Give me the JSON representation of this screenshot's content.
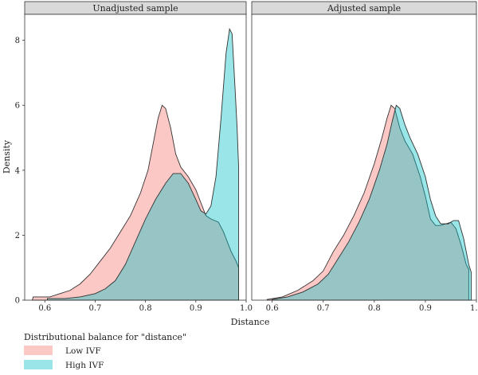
{
  "chart_data": {
    "type": "area",
    "subtype": "density",
    "xlabel": "Distance",
    "ylabel": "Density",
    "xlim": [
      0.56,
      1.0
    ],
    "ylim": [
      0,
      8.8
    ],
    "x_ticks": [
      0.6,
      0.7,
      0.8,
      0.9,
      1.0
    ],
    "x_tick_labels": [
      "0.6",
      "0.7",
      "0.8",
      "0.9",
      "1.0"
    ],
    "y_ticks": [
      0,
      2,
      4,
      6,
      8
    ],
    "y_tick_labels": [
      "0",
      "2",
      "4",
      "6",
      "8"
    ],
    "grid": false,
    "legend": {
      "title": "Distributional balance for \"distance\"",
      "position": "bottom-left",
      "entries": [
        {
          "label": "Low IVF",
          "color": "#f8c4bf"
        },
        {
          "label": "High IVF",
          "color": "#9fdde0"
        }
      ]
    },
    "colors": {
      "low_fill": "#f8766d",
      "high_fill": "#00bfc4",
      "outline": "#333333",
      "strip_bg": "#d9d9d9"
    },
    "panels": [
      {
        "title": "Unadjusted sample",
        "series": [
          {
            "name": "Low IVF",
            "points": [
              [
                0.575,
                0.0
              ],
              [
                0.577,
                0.1
              ],
              [
                0.59,
                0.1
              ],
              [
                0.61,
                0.1
              ],
              [
                0.63,
                0.2
              ],
              [
                0.65,
                0.3
              ],
              [
                0.67,
                0.5
              ],
              [
                0.69,
                0.8
              ],
              [
                0.71,
                1.2
              ],
              [
                0.73,
                1.6
              ],
              [
                0.75,
                2.1
              ],
              [
                0.77,
                2.6
              ],
              [
                0.79,
                3.3
              ],
              [
                0.805,
                4.0
              ],
              [
                0.815,
                4.8
              ],
              [
                0.825,
                5.6
              ],
              [
                0.833,
                6.0
              ],
              [
                0.84,
                5.9
              ],
              [
                0.85,
                5.3
              ],
              [
                0.86,
                4.5
              ],
              [
                0.87,
                4.1
              ],
              [
                0.885,
                3.8
              ],
              [
                0.9,
                3.4
              ],
              [
                0.91,
                3.0
              ],
              [
                0.92,
                2.6
              ],
              [
                0.93,
                2.5
              ],
              [
                0.945,
                2.4
              ],
              [
                0.955,
                2.1
              ],
              [
                0.97,
                1.5
              ],
              [
                0.98,
                1.2
              ],
              [
                0.985,
                1.0
              ],
              [
                0.985,
                0.0
              ]
            ]
          },
          {
            "name": "High IVF",
            "points": [
              [
                0.605,
                0.0
              ],
              [
                0.605,
                0.05
              ],
              [
                0.64,
                0.05
              ],
              [
                0.67,
                0.1
              ],
              [
                0.7,
                0.2
              ],
              [
                0.72,
                0.35
              ],
              [
                0.74,
                0.6
              ],
              [
                0.76,
                1.1
              ],
              [
                0.78,
                1.8
              ],
              [
                0.8,
                2.5
              ],
              [
                0.82,
                3.1
              ],
              [
                0.84,
                3.6
              ],
              [
                0.855,
                3.9
              ],
              [
                0.87,
                3.9
              ],
              [
                0.885,
                3.6
              ],
              [
                0.9,
                3.1
              ],
              [
                0.91,
                2.75
              ],
              [
                0.92,
                2.65
              ],
              [
                0.93,
                2.9
              ],
              [
                0.94,
                3.8
              ],
              [
                0.95,
                5.6
              ],
              [
                0.96,
                7.6
              ],
              [
                0.967,
                8.35
              ],
              [
                0.972,
                8.2
              ],
              [
                0.978,
                6.5
              ],
              [
                0.982,
                5.3
              ],
              [
                0.985,
                4.1
              ],
              [
                0.985,
                0.0
              ]
            ]
          }
        ]
      },
      {
        "title": "Adjusted sample",
        "series": [
          {
            "name": "Low IVF",
            "points": [
              [
                0.59,
                0.0
              ],
              [
                0.59,
                0.02
              ],
              [
                0.62,
                0.1
              ],
              [
                0.65,
                0.3
              ],
              [
                0.68,
                0.6
              ],
              [
                0.7,
                0.9
              ],
              [
                0.72,
                1.5
              ],
              [
                0.74,
                2.0
              ],
              [
                0.76,
                2.6
              ],
              [
                0.78,
                3.3
              ],
              [
                0.8,
                4.2
              ],
              [
                0.815,
                5.0
              ],
              [
                0.825,
                5.6
              ],
              [
                0.833,
                6.0
              ],
              [
                0.84,
                5.9
              ],
              [
                0.85,
                5.3
              ],
              [
                0.86,
                4.9
              ],
              [
                0.875,
                4.5
              ],
              [
                0.89,
                3.8
              ],
              [
                0.9,
                3.2
              ],
              [
                0.91,
                2.5
              ],
              [
                0.92,
                2.3
              ],
              [
                0.93,
                2.3
              ],
              [
                0.94,
                2.35
              ],
              [
                0.95,
                2.4
              ],
              [
                0.96,
                2.2
              ],
              [
                0.97,
                1.7
              ],
              [
                0.98,
                1.1
              ],
              [
                0.985,
                0.95
              ],
              [
                0.985,
                0.0
              ]
            ]
          },
          {
            "name": "High IVF",
            "points": [
              [
                0.6,
                0.0
              ],
              [
                0.6,
                0.02
              ],
              [
                0.63,
                0.1
              ],
              [
                0.66,
                0.25
              ],
              [
                0.69,
                0.5
              ],
              [
                0.71,
                0.8
              ],
              [
                0.73,
                1.3
              ],
              [
                0.75,
                1.8
              ],
              [
                0.77,
                2.4
              ],
              [
                0.79,
                3.1
              ],
              [
                0.81,
                4.0
              ],
              [
                0.825,
                4.8
              ],
              [
                0.835,
                5.5
              ],
              [
                0.843,
                6.0
              ],
              [
                0.85,
                5.9
              ],
              [
                0.86,
                5.4
              ],
              [
                0.87,
                5.0
              ],
              [
                0.885,
                4.5
              ],
              [
                0.9,
                3.8
              ],
              [
                0.91,
                3.1
              ],
              [
                0.92,
                2.6
              ],
              [
                0.93,
                2.35
              ],
              [
                0.945,
                2.35
              ],
              [
                0.955,
                2.45
              ],
              [
                0.965,
                2.45
              ],
              [
                0.975,
                1.9
              ],
              [
                0.985,
                1.1
              ],
              [
                0.99,
                0.85
              ],
              [
                0.99,
                0.0
              ]
            ]
          }
        ]
      }
    ]
  }
}
